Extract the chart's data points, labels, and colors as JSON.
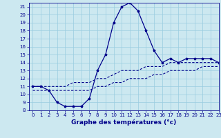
{
  "xlabel": "Graphe des températures (°c)",
  "bg_color": "#cce8f0",
  "line_color": "#00008b",
  "grid_color": "#99cce0",
  "x_values": [
    0,
    1,
    2,
    3,
    4,
    5,
    6,
    7,
    8,
    9,
    10,
    11,
    12,
    13,
    14,
    15,
    16,
    17,
    18,
    19,
    20,
    21,
    22,
    23
  ],
  "y_main": [
    11,
    11,
    10.5,
    9,
    8.5,
    8.5,
    8.5,
    9.5,
    13,
    15,
    19,
    21,
    21.5,
    20.5,
    18,
    15.5,
    14,
    14.5,
    14,
    14.5,
    14.5,
    14.5,
    14.5,
    14
  ],
  "y_min": [
    10.5,
    10.5,
    10.5,
    10.5,
    10.5,
    10.5,
    10.5,
    10.5,
    11,
    11,
    11.5,
    11.5,
    12,
    12,
    12,
    12.5,
    12.5,
    13,
    13,
    13,
    13,
    13.5,
    13.5,
    13.5
  ],
  "y_max": [
    11,
    11,
    11,
    11,
    11,
    11.5,
    11.5,
    11.5,
    12,
    12,
    12.5,
    13,
    13,
    13,
    13.5,
    13.5,
    13.5,
    14,
    14,
    14,
    14,
    14,
    14,
    14
  ],
  "ylim": [
    8,
    21.5
  ],
  "xlim": [
    -0.5,
    23
  ],
  "yticks": [
    8,
    9,
    10,
    11,
    12,
    13,
    14,
    15,
    16,
    17,
    18,
    19,
    20,
    21
  ],
  "xticks": [
    0,
    1,
    2,
    3,
    4,
    5,
    6,
    7,
    8,
    9,
    10,
    11,
    12,
    13,
    14,
    15,
    16,
    17,
    18,
    19,
    20,
    21,
    22,
    23
  ],
  "xlabel_fontsize": 6.5,
  "tick_fontsize": 5.0,
  "lw_main": 0.9,
  "lw_band": 0.8,
  "marker_size": 2.5
}
